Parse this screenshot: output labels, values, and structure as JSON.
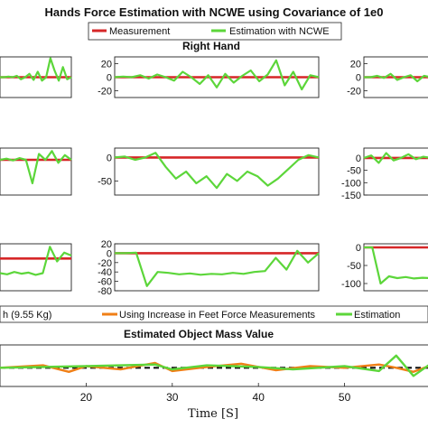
{
  "figure": {
    "title": "Hands Force Estimation with NCWE using Covariance of 1e0",
    "subtitle_right_hand": "Right Hand",
    "subtitle_mass": "Estimated Object Mass Value",
    "xlabel": "Time [S]"
  },
  "legend_top": {
    "items": [
      {
        "label": "Measurement",
        "color": "#d62728"
      },
      {
        "label": "Estimation with NCWE",
        "color": "#5cd63a"
      }
    ]
  },
  "legend_bottom": {
    "items": [
      {
        "label": "h (9.55 Kg)",
        "color": "#111111"
      },
      {
        "label": "Using Increase in Feet Force Measurements",
        "color": "#f07f16"
      },
      {
        "label": "Estimation",
        "color": "#5cd63a"
      }
    ]
  },
  "colors": {
    "measurement": "#d62728",
    "estimation": "#5cd63a",
    "feet": "#f07f16",
    "reference": "#111111"
  },
  "chart_data": [
    {
      "type": "line",
      "panel": "row1-left",
      "yticks": [],
      "ylim": [
        -30,
        30
      ],
      "series": [
        {
          "name": "Measurement",
          "values": [
            0,
            0
          ]
        },
        {
          "name": "Estimation with NCWE",
          "values": [
            0,
            0,
            1,
            0,
            2,
            -3,
            0,
            5,
            -4,
            8,
            -5,
            0,
            28,
            10,
            -5,
            15,
            -3,
            0
          ]
        }
      ]
    },
    {
      "type": "line",
      "panel": "row1-center",
      "yticks": [
        "20",
        "0",
        "-20"
      ],
      "ylim": [
        -30,
        30
      ],
      "series": [
        {
          "name": "Measurement",
          "values": [
            0,
            0
          ]
        },
        {
          "name": "Estimation with NCWE",
          "values": [
            0,
            1,
            0,
            3,
            -2,
            4,
            0,
            -5,
            8,
            0,
            -10,
            3,
            -15,
            5,
            -8,
            2,
            10,
            -6,
            4,
            25,
            -12,
            8,
            -18,
            3,
            0
          ]
        }
      ]
    },
    {
      "type": "line",
      "panel": "row1-right",
      "yticks": [
        "20",
        "0",
        "-20"
      ],
      "ylim": [
        -30,
        30
      ],
      "series": [
        {
          "name": "Measurement",
          "values": [
            0,
            0
          ]
        },
        {
          "name": "Estimation with NCWE",
          "values": [
            0,
            0,
            2,
            -1,
            5,
            -4,
            0,
            3,
            -6,
            2,
            0
          ]
        }
      ]
    },
    {
      "type": "line",
      "panel": "row2-left",
      "yticks": [],
      "ylim": [
        -60,
        20
      ],
      "series": [
        {
          "name": "Measurement",
          "values": [
            0,
            0
          ]
        },
        {
          "name": "Estimation with NCWE",
          "values": [
            0,
            2,
            -1,
            3,
            0,
            -40,
            10,
            0,
            15,
            -5,
            8,
            0
          ]
        }
      ]
    },
    {
      "type": "line",
      "panel": "row2-center",
      "yticks": [
        "0",
        "-50"
      ],
      "ylim": [
        -80,
        20
      ],
      "series": [
        {
          "name": "Measurement",
          "values": [
            0,
            0
          ]
        },
        {
          "name": "Estimation with NCWE",
          "values": [
            0,
            2,
            -5,
            0,
            10,
            -20,
            -45,
            -30,
            -55,
            -40,
            -65,
            -35,
            -50,
            -30,
            -40,
            -60,
            -45,
            -25,
            -5,
            5,
            0
          ]
        }
      ]
    },
    {
      "type": "line",
      "panel": "row2-right",
      "yticks": [
        "0",
        "-50",
        "-100",
        "-150"
      ],
      "ylim": [
        -150,
        40
      ],
      "series": [
        {
          "name": "Measurement",
          "values": [
            0,
            0
          ]
        },
        {
          "name": "Estimation with NCWE",
          "values": [
            0,
            10,
            -20,
            20,
            -10,
            0,
            15,
            -5,
            5,
            0
          ]
        }
      ]
    },
    {
      "type": "line",
      "panel": "row3-left",
      "yticks": [],
      "ylim": [
        -60,
        20
      ],
      "series": [
        {
          "name": "Measurement",
          "values": [
            -5,
            -5
          ]
        },
        {
          "name": "Estimation with NCWE",
          "values": [
            -30,
            -32,
            -28,
            -31,
            -29,
            -33,
            -30,
            15,
            -10,
            5,
            0
          ]
        }
      ]
    },
    {
      "type": "line",
      "panel": "row3-center",
      "yticks": [
        "20",
        "0",
        "-20",
        "-40",
        "-60",
        "-80"
      ],
      "ylim": [
        -80,
        20
      ],
      "series": [
        {
          "name": "Measurement",
          "values": [
            0,
            0
          ]
        },
        {
          "name": "Estimation with NCWE",
          "values": [
            0,
            0,
            1,
            -70,
            -40,
            -42,
            -45,
            -43,
            -46,
            -44,
            -45,
            -42,
            -44,
            -40,
            -38,
            -10,
            -35,
            5,
            -20,
            0
          ]
        }
      ]
    },
    {
      "type": "line",
      "panel": "row3-right",
      "yticks": [
        "0",
        "-50",
        "-100"
      ],
      "ylim": [
        -120,
        10
      ],
      "series": [
        {
          "name": "Measurement",
          "values": [
            0,
            0
          ]
        },
        {
          "name": "Estimation with NCWE",
          "values": [
            0,
            0,
            -100,
            -80,
            -85,
            -82,
            -86,
            -84,
            -85
          ]
        }
      ]
    },
    {
      "type": "line",
      "panel": "mass",
      "xlabel": "Time [S]",
      "xticks": [
        "20",
        "30",
        "40",
        "50"
      ],
      "xlim": [
        10,
        60
      ],
      "series": [
        {
          "name": "Using Increase in Feet Force Measurements",
          "x": [
            10,
            15,
            18,
            20,
            24,
            28,
            30,
            34,
            38,
            42,
            46,
            50,
            54,
            56,
            58,
            60
          ],
          "values": [
            0,
            0.3,
            -0.5,
            0.2,
            -0.2,
            0.6,
            -0.4,
            0.1,
            0.5,
            -0.3,
            0.2,
            0,
            0.4,
            0,
            -0.5,
            0.3
          ]
        },
        {
          "name": "Estimation",
          "x": [
            10,
            20,
            28,
            30,
            34,
            40,
            44,
            50,
            54,
            56,
            58,
            60
          ],
          "values": [
            0,
            0.2,
            0.4,
            -0.2,
            0.3,
            0.1,
            -0.2,
            0.2,
            -0.4,
            1.5,
            -1,
            0.5
          ]
        }
      ]
    }
  ]
}
